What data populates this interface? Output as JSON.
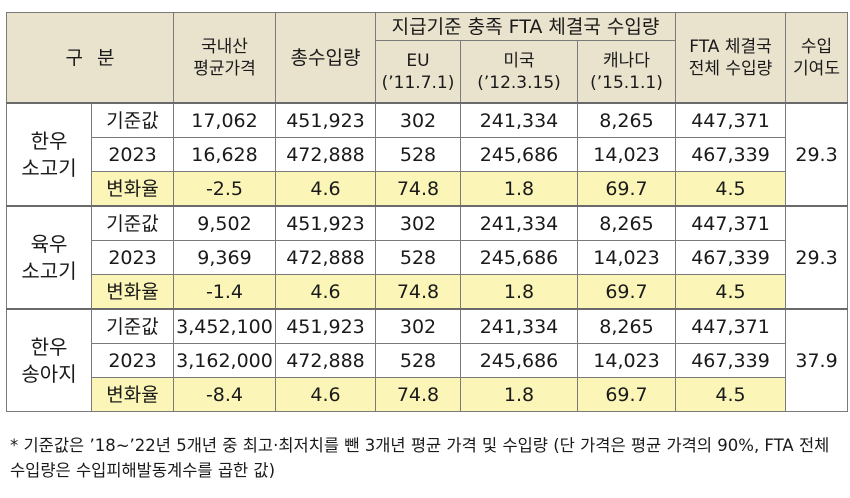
{
  "header": {
    "gubun": "구분",
    "domestic_price": [
      "국내산",
      "평균가격"
    ],
    "total_import": "총수입량",
    "fta_group": "지급기준 충족 FTA 체결국 수입량",
    "eu": {
      "name": "EU",
      "date": "(’11.7.1)"
    },
    "usa": {
      "name": "미국",
      "date": "(’12.3.15)"
    },
    "canada": {
      "name": "캐나다",
      "date": "(’15.1.1)"
    },
    "fta_total": [
      "FTA 체결국",
      "전체 수입량"
    ],
    "contribution": [
      "수입",
      "기여도"
    ]
  },
  "groups": [
    {
      "name": [
        "한우",
        "소고기"
      ],
      "contribution": "29.3",
      "rows": [
        {
          "label": "기준값",
          "values": [
            "17,062",
            "451,923",
            "302",
            "241,334",
            "8,265",
            "447,371"
          ]
        },
        {
          "label": "2023",
          "values": [
            "16,628",
            "472,888",
            "528",
            "245,686",
            "14,023",
            "467,339"
          ]
        },
        {
          "label": "변화율",
          "values": [
            "-2.5",
            "4.6",
            "74.8",
            "1.8",
            "69.7",
            "4.5"
          ]
        }
      ]
    },
    {
      "name": [
        "육우",
        "소고기"
      ],
      "contribution": "29.3",
      "rows": [
        {
          "label": "기준값",
          "values": [
            "9,502",
            "451,923",
            "302",
            "241,334",
            "8,265",
            "447,371"
          ]
        },
        {
          "label": "2023",
          "values": [
            "9,369",
            "472,888",
            "528",
            "245,686",
            "14,023",
            "467,339"
          ]
        },
        {
          "label": "변화율",
          "values": [
            "-1.4",
            "4.6",
            "74.8",
            "1.8",
            "69.7",
            "4.5"
          ]
        }
      ]
    },
    {
      "name": [
        "한우",
        "송아지"
      ],
      "contribution": "37.9",
      "rows": [
        {
          "label": "기준값",
          "values": [
            "3,452,100",
            "451,923",
            "302",
            "241,334",
            "8,265",
            "447,371"
          ]
        },
        {
          "label": "2023",
          "values": [
            "3,162,000",
            "472,888",
            "528",
            "245,686",
            "14,023",
            "467,339"
          ]
        },
        {
          "label": "변화율",
          "values": [
            "-8.4",
            "4.6",
            "74.8",
            "1.8",
            "69.7",
            "4.5"
          ]
        }
      ]
    }
  ],
  "footnote": "* 기준값은 ’18~’22년 5개년 중 최고·최저치를 뺀 3개년 평균 가격 및 수입량 (단 가격은 평균 가격의 90%, FTA 전체 수입량은 수입피해발동계수를 곱한 값)",
  "colors": {
    "header_bg": "#e9e2cc",
    "rate_bg": "#fbf5b8",
    "border": "#7a7a7a"
  }
}
